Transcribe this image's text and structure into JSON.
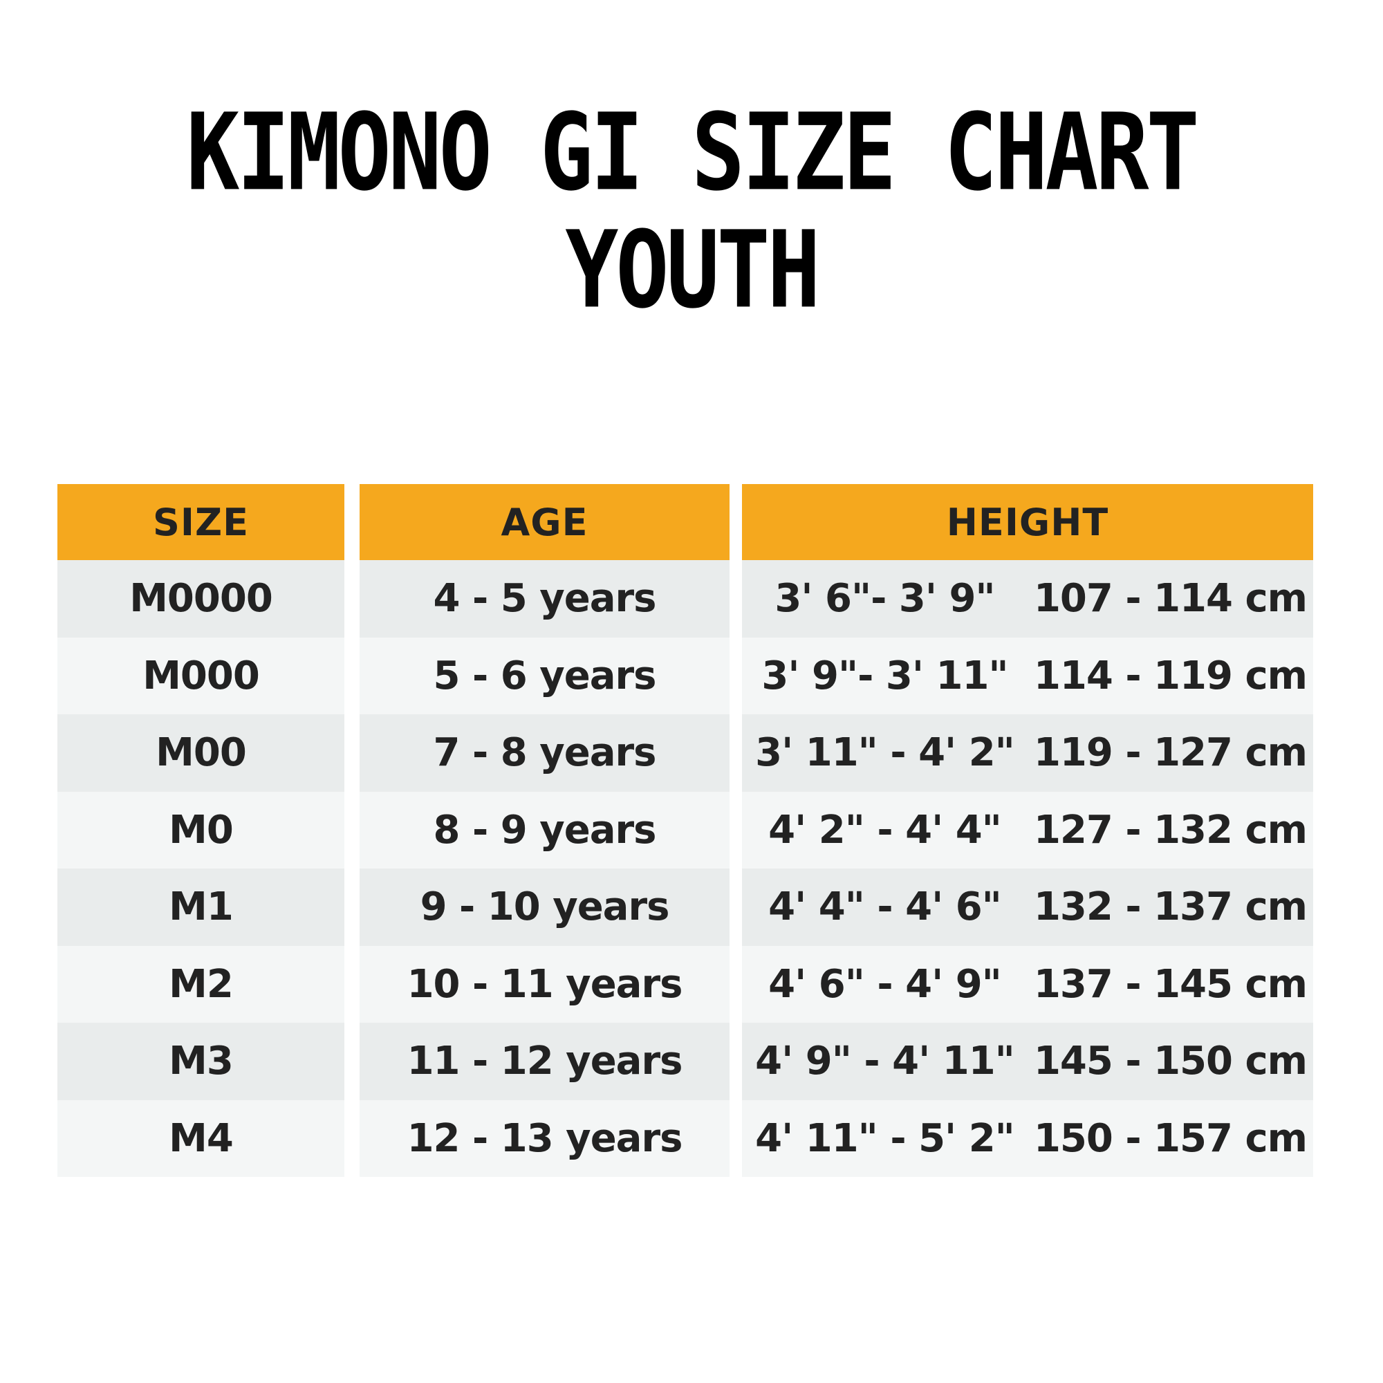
{
  "title": {
    "line1": "KIMONO GI SIZE CHART",
    "line2": "YOUTH"
  },
  "colors": {
    "header": "#f5a81e",
    "row_dark": "#e9ecec",
    "row_light": "#f4f6f6",
    "text": "#222222"
  },
  "table": {
    "headers": {
      "size": "SIZE",
      "age": "AGE",
      "height": "HEIGHT"
    },
    "rows": [
      {
        "size": "M0000",
        "age": "4 - 5 years",
        "height_imperial": "3' 6\"- 3' 9\"",
        "height_metric": "107 - 114 cm"
      },
      {
        "size": "M000",
        "age": "5 - 6 years",
        "height_imperial": "3' 9\"- 3' 11\"",
        "height_metric": "114 - 119 cm"
      },
      {
        "size": "M00",
        "age": "7 - 8 years",
        "height_imperial": "3' 11\" - 4' 2\"",
        "height_metric": "119 - 127 cm"
      },
      {
        "size": "M0",
        "age": "8 - 9 years",
        "height_imperial": "4' 2\" - 4' 4\"",
        "height_metric": "127 - 132 cm"
      },
      {
        "size": "M1",
        "age": "9 - 10 years",
        "height_imperial": "4' 4\" - 4' 6\"",
        "height_metric": "132 - 137 cm"
      },
      {
        "size": "M2",
        "age": "10 - 11 years",
        "height_imperial": "4' 6\" - 4' 9\"",
        "height_metric": "137 - 145 cm"
      },
      {
        "size": "M3",
        "age": "11 - 12 years",
        "height_imperial": "4' 9\" - 4' 11\"",
        "height_metric": "145 - 150 cm"
      },
      {
        "size": "M4",
        "age": "12 - 13 years",
        "height_imperial": "4' 11\" - 5' 2\"",
        "height_metric": "150 - 157 cm"
      }
    ]
  }
}
